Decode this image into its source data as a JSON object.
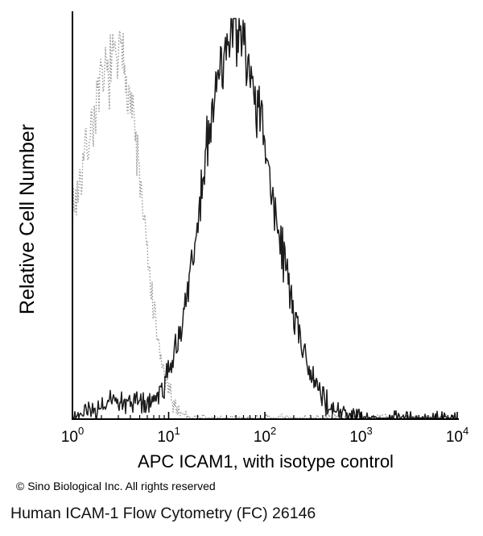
{
  "chart_data": {
    "type": "histogram-overlay",
    "title": "",
    "xlabel": "APC ICAM1, with isotype control",
    "ylabel": "Relative Cell Number",
    "x_axis_scale": "log10",
    "x_log_range": [
      0,
      4
    ],
    "x_tick_base": "10",
    "x_tick_exponents": [
      0,
      1,
      2,
      3,
      4
    ],
    "y_axis_ticks": "none",
    "grid": false,
    "legend_position": "none",
    "axis_color": "#000000",
    "series": [
      {
        "id": "isotype-control-trace",
        "name": "Isotype control",
        "line": "dotted",
        "color": "#949494",
        "components": [
          {
            "peak_log": 0.5,
            "sigma_left": 0.47,
            "sigma_right": 0.22,
            "amplitude": 0.9
          }
        ],
        "noise": 0.1,
        "baseline_noise": 0.012,
        "seed": 7,
        "peak_value_log10": 0.5,
        "peak_value_linear": 3.2
      },
      {
        "id": "apc-icam1-trace",
        "name": "APC ICAM1",
        "line": "solid",
        "color": "#1c1c1c",
        "components": [
          {
            "peak_log": 1.66,
            "sigma_left": 0.32,
            "sigma_right": 0.36,
            "amplitude": 0.93
          },
          {
            "peak_log": 2.15,
            "sigma_left": 0.3,
            "sigma_right": 0.26,
            "amplitude": 0.1
          },
          {
            "peak_log": 0.5,
            "sigma_left": 0.22,
            "sigma_right": 0.22,
            "amplitude": 0.045
          }
        ],
        "noise": 0.09,
        "baseline_noise": 0.02,
        "seed": 23,
        "peak_value_log10": 1.66,
        "peak_value_linear": 46
      }
    ]
  },
  "footer": {
    "copyright": "© Sino Biological Inc. All rights reserved",
    "caption": "Human ICAM-1 Flow Cytometry (FC) 26146"
  }
}
